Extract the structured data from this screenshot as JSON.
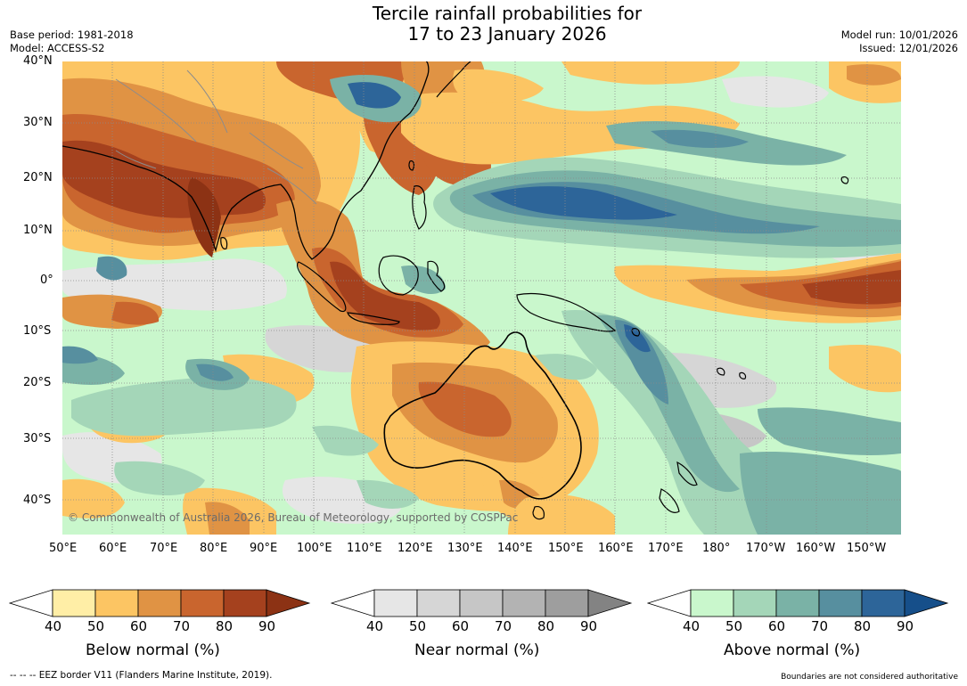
{
  "title": {
    "line1": "Tercile rainfall probabilities for",
    "line2": "17 to 23 January 2026"
  },
  "meta": {
    "base_period": "Base period: 1981-2018",
    "model": "Model: ACCESS-S2",
    "model_run": "Model run: 10/01/2026",
    "issued": "Issued: 12/01/2026"
  },
  "map": {
    "lat_labels": [
      "40°N",
      "30°N",
      "20°N",
      "10°N",
      "0°",
      "10°S",
      "20°S",
      "30°S",
      "40°S"
    ],
    "lon_labels": [
      "50°E",
      "60°E",
      "70°E",
      "80°E",
      "90°E",
      "100°E",
      "110°E",
      "120°E",
      "130°E",
      "140°E",
      "150°E",
      "160°E",
      "170°E",
      "180°",
      "170°W",
      "160°W",
      "150°W"
    ],
    "copyright": "© Commonwealth of Australia 2026, Bureau of Meteorology, supported by COSPPac"
  },
  "colorbars": {
    "below": {
      "label": "Below normal (%)",
      "ticks": [
        "40",
        "50",
        "60",
        "70",
        "80",
        "90"
      ],
      "colors": [
        "#ffeea6",
        "#fcc563",
        "#e09344",
        "#c9652e",
        "#a5411e"
      ],
      "extend_color": "#8c3214"
    },
    "near": {
      "label": "Near normal (%)",
      "ticks": [
        "40",
        "50",
        "60",
        "70",
        "80",
        "90"
      ],
      "colors": [
        "#e6e6e6",
        "#d6d6d6",
        "#c6c6c6",
        "#b3b3b3",
        "#9e9e9e"
      ],
      "extend_color": "#838383"
    },
    "above": {
      "label": "Above normal (%)",
      "ticks": [
        "40",
        "50",
        "60",
        "70",
        "80",
        "90"
      ],
      "colors": [
        "#c9f7cc",
        "#a4d6b8",
        "#7ab2a6",
        "#578f9f",
        "#2d6599"
      ],
      "extend_color": "#164f8a"
    }
  },
  "footer": {
    "eez": "--  --  -- EEZ border V11 (Flanders Marine Institute, 2019).",
    "disclaimer": "Boundaries are not considered authoritative"
  },
  "colors": {
    "ocean": "#c9f7cc",
    "land_outline": "#000000",
    "grid": "#8a8a8a"
  }
}
